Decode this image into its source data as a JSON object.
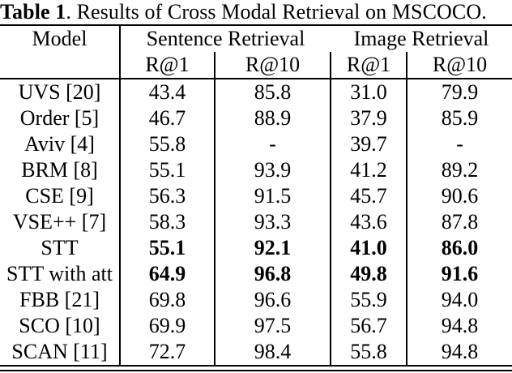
{
  "title": {
    "label": "Table 1",
    "rest": ". Results of Cross Modal Retrieval on MSCOCO."
  },
  "table": {
    "model_header": "Model",
    "groups": [
      {
        "label": "Sentence Retrieval"
      },
      {
        "label": "Image Retrieval"
      }
    ],
    "subheaders": [
      "R@1",
      "R@10",
      "R@1",
      "R@10"
    ],
    "rows": [
      {
        "model": "UVS [20]",
        "values": [
          "43.4",
          "85.8",
          "31.0",
          "79.9"
        ],
        "bold": false
      },
      {
        "model": "Order [5]",
        "values": [
          "46.7",
          "88.9",
          "37.9",
          "85.9"
        ],
        "bold": false
      },
      {
        "model": "Aviv [4]",
        "values": [
          "55.8",
          "-",
          "39.7",
          "-"
        ],
        "bold": false
      },
      {
        "model": "BRM [8]",
        "values": [
          "55.1",
          "93.9",
          "41.2",
          "89.2"
        ],
        "bold": false
      },
      {
        "model": "CSE [9]",
        "values": [
          "56.3",
          "91.5",
          "45.7",
          "90.6"
        ],
        "bold": false
      },
      {
        "model": "VSE++ [7]",
        "values": [
          "58.3",
          "93.3",
          "43.6",
          "87.8"
        ],
        "bold": false
      },
      {
        "model": "STT",
        "values": [
          "55.1",
          "92.1",
          "41.0",
          "86.0"
        ],
        "bold": true
      },
      {
        "model": "STT with att",
        "values": [
          "64.9",
          "96.8",
          "49.8",
          "91.6"
        ],
        "bold": true
      },
      {
        "model": "FBB [21]",
        "values": [
          "69.8",
          "96.6",
          "55.9",
          "94.0"
        ],
        "bold": false
      },
      {
        "model": "SCO [10]",
        "values": [
          "69.9",
          "97.5",
          "56.7",
          "94.8"
        ],
        "bold": false
      },
      {
        "model": "SCAN [11]",
        "values": [
          "72.7",
          "98.4",
          "55.8",
          "94.8"
        ],
        "bold": false
      }
    ]
  },
  "colors": {
    "text": "#000000",
    "rule": "#000000",
    "background": "#ffffff"
  }
}
